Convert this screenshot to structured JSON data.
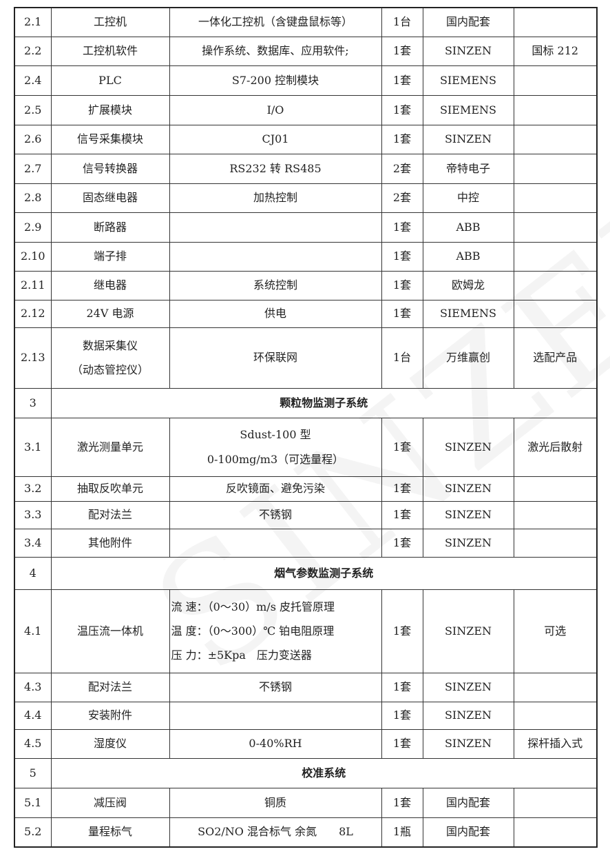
{
  "watermark": "SINZEN",
  "rows": [
    {
      "no": "2.1",
      "name": "工控机",
      "desc": "一体化工控机（含键盘鼠标等）",
      "qty": "1台",
      "brand": "国内配套",
      "note": ""
    },
    {
      "no": "2.2",
      "name": "工控机软件",
      "desc": "操作系统、数据库、应用软件;",
      "qty": "1套",
      "brand": "SINZEN",
      "note": "国标 212"
    },
    {
      "no": "2.4",
      "name": "PLC",
      "desc": "S7-200 控制模块",
      "qty": "1套",
      "brand": "SIEMENS",
      "note": ""
    },
    {
      "no": "2.5",
      "name": "扩展模块",
      "desc": "I/O",
      "qty": "1套",
      "brand": "SIEMENS",
      "note": ""
    },
    {
      "no": "2.6",
      "name": "信号采集模块",
      "desc": "CJ01",
      "qty": "1套",
      "brand": "SINZEN",
      "note": ""
    },
    {
      "no": "2.7",
      "name": "信号转换器",
      "desc": "RS232 转 RS485",
      "qty": "2套",
      "brand": "帝特电子",
      "note": ""
    },
    {
      "no": "2.8",
      "name": "固态继电器",
      "desc": "加热控制",
      "qty": "2套",
      "brand": "中控",
      "note": ""
    },
    {
      "no": "2.9",
      "name": "断路器",
      "desc": "",
      "qty": "1套",
      "brand": "ABB",
      "note": ""
    },
    {
      "no": "2.10",
      "name": "端子排",
      "desc": "",
      "qty": "1套",
      "brand": "ABB",
      "note": ""
    },
    {
      "no": "2.11",
      "name": "继电器",
      "desc": "系统控制",
      "qty": "1套",
      "brand": "欧姆龙",
      "note": ""
    },
    {
      "no": "2.12",
      "name": "24V 电源",
      "desc": "供电",
      "qty": "1套",
      "brand": "SIEMENS",
      "note": ""
    },
    {
      "no": "2.13",
      "name": "数据采集仪",
      "name2": "（动态管控仪）",
      "desc": "环保联网",
      "qty": "1台",
      "brand": "万维赢创",
      "note": "选配产品"
    },
    {
      "section": true,
      "no": "3",
      "title": "颗粒物监测子系统"
    },
    {
      "no": "3.1",
      "name": "激光测量单元",
      "desc": "Sdust-100 型",
      "desc2": "0-100mg/m3（可选量程）",
      "qty": "1套",
      "brand": "SINZEN",
      "note": "激光后散射"
    },
    {
      "no": "3.2",
      "name": "抽取反吹单元",
      "desc": "反吹镜面、避免污染",
      "qty": "1套",
      "brand": "SINZEN",
      "note": ""
    },
    {
      "no": "3.3",
      "name": "配对法兰",
      "desc": "不锈钢",
      "qty": "1套",
      "brand": "SINZEN",
      "note": ""
    },
    {
      "no": "3.4",
      "name": "其他附件",
      "desc": "",
      "qty": "1套",
      "brand": "SINZEN",
      "note": ""
    },
    {
      "section": true,
      "no": "4",
      "title": "烟气参数监测子系统"
    },
    {
      "no": "4.1",
      "name": "温压流一体机",
      "desc": "流 速：（0～30）m/s 皮托管原理",
      "desc2": "温 度：（0～300）℃ 铂电阻原理",
      "desc3": "压 力：±5Kpa　压力变送器",
      "qty": "1套",
      "brand": "SINZEN",
      "note": "可选"
    },
    {
      "no": "4.3",
      "name": "配对法兰",
      "desc": "不锈钢",
      "qty": "1套",
      "brand": "SINZEN",
      "note": ""
    },
    {
      "no": "4.4",
      "name": "安装附件",
      "desc": "",
      "qty": "1套",
      "brand": "SINZEN",
      "note": ""
    },
    {
      "no": "4.5",
      "name": "湿度仪",
      "desc": "0-40%RH",
      "qty": "1套",
      "brand": "SINZEN",
      "note": "探杆插入式"
    },
    {
      "section": true,
      "no": "5",
      "title": "校准系统"
    },
    {
      "no": "5.1",
      "name": "减压阀",
      "desc": "铜质",
      "qty": "1套",
      "brand": "国内配套",
      "note": ""
    },
    {
      "no": "5.2",
      "name": "量程标气",
      "desc": "SO2/NO 混合标气 余氮　　8L",
      "qty": "1瓶",
      "brand": "国内配套",
      "note": ""
    }
  ]
}
